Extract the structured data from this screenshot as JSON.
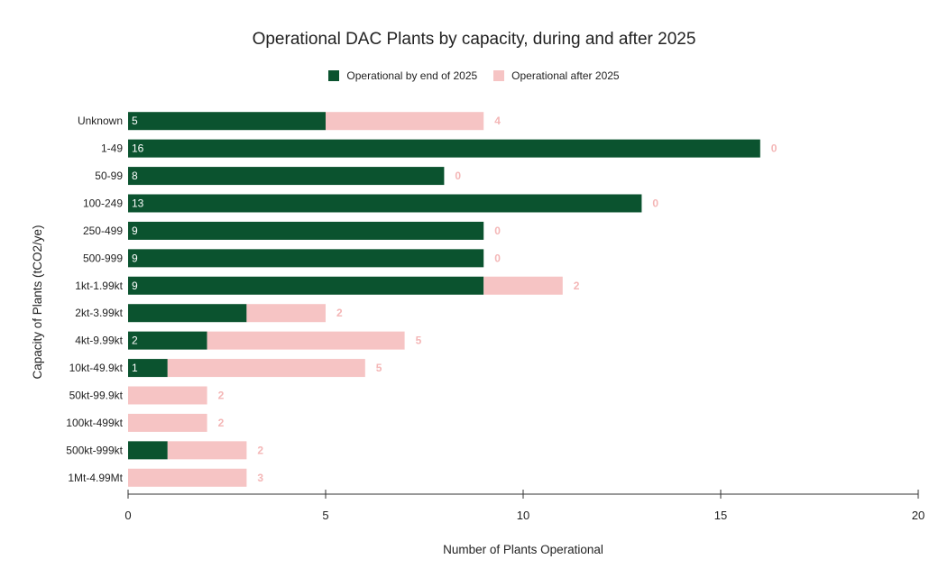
{
  "chart_data": {
    "type": "bar",
    "orientation": "horizontal",
    "stacked": true,
    "title": "Operational DAC Plants by capacity, during and after 2025",
    "xlabel": "Number of Plants Operational",
    "ylabel": "Capacity of Plants (tCO2/ye)",
    "xlim": [
      0,
      20
    ],
    "xticks": [
      "0",
      "5",
      "10",
      "15",
      "20"
    ],
    "categories": [
      "Unknown",
      "1-49",
      "50-99",
      "100-249",
      "250-499",
      "500-999",
      "1kt-1.99kt",
      "2kt-3.99kt",
      "4kt-9.99kt",
      "10kt-49.9kt",
      "50kt-99.9kt",
      "100kt-499kt",
      "500kt-999kt",
      "1Mt-4.99Mt"
    ],
    "series": [
      {
        "name": "Operational by end of 2025",
        "color": "#0b532f",
        "values": [
          5,
          16,
          8,
          13,
          9,
          9,
          9,
          3,
          2,
          1,
          0,
          0,
          1,
          0
        ],
        "labels": [
          "5",
          "16",
          "8",
          "13",
          "9",
          "9",
          "9",
          "",
          "2",
          "1",
          "",
          "",
          "",
          ""
        ]
      },
      {
        "name": "Operational after 2025",
        "color": "#f6c4c4",
        "values": [
          4,
          0,
          0,
          0,
          0,
          0,
          2,
          2,
          5,
          5,
          2,
          2,
          2,
          3
        ],
        "labels": [
          "4",
          "0",
          "0",
          "0",
          "0",
          "0",
          "2",
          "2",
          "5",
          "5",
          "2",
          "2",
          "2",
          "3"
        ]
      }
    ],
    "grid": false,
    "legend_position": "top"
  }
}
